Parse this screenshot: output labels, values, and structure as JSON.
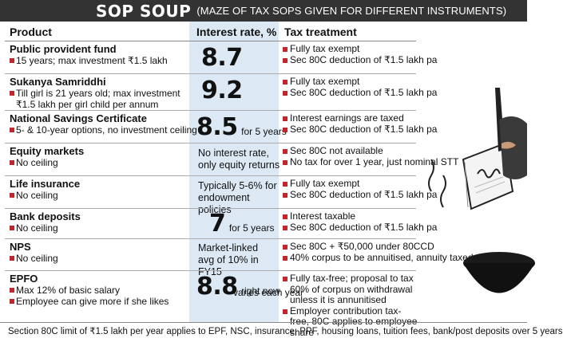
{
  "banner": {
    "title": "SOP SOUP",
    "subtitle": "(MAZE OF TAX SOPS GIVEN FOR DIFFERENT INSTRUMENTS)"
  },
  "headers": {
    "product": "Product",
    "rate": "Interest rate, %",
    "tax": "Tax treatment"
  },
  "rows": [
    {
      "name": "Public provident fund",
      "details": [
        "15 years; max investment ₹1.5 lakh"
      ],
      "rate_big": "8.7",
      "rate_note": "",
      "rate_text": [],
      "tax": [
        "Fully tax exempt",
        "Sec 80C deduction of ₹1.5 lakh pa"
      ]
    },
    {
      "name": "Sukanya Samriddhi",
      "details": [
        "Till girl is 21 years old; max investment ₹1.5 lakh per girl child per annum"
      ],
      "rate_big": "9.2",
      "rate_note": "",
      "rate_text": [],
      "tax": [
        "Fully tax exempt",
        "Sec 80C deduction of ₹1.5 lakh pa"
      ]
    },
    {
      "name": "National Savings Certificate",
      "details": [
        "5- & 10-year options, no investment ceiling"
      ],
      "rate_big": "8.5",
      "rate_note": "for 5 years",
      "rate_text": [],
      "tax": [
        "Interest earnings are taxed",
        "Sec 80C deduction of ₹1.5 lakh pa"
      ]
    },
    {
      "name": "Equity markets",
      "details": [
        "No ceiling"
      ],
      "rate_big": "",
      "rate_note": "",
      "rate_text": [
        "No interest rate,",
        "only equity returns"
      ],
      "tax": [
        "Sec 80C not available",
        "No tax for over 1 year, just nominal STT"
      ]
    },
    {
      "name": "Life insurance",
      "details": [
        "No ceiling"
      ],
      "rate_big": "",
      "rate_note": "",
      "rate_text": [
        "Typically 5-6% for",
        "endowment policies"
      ],
      "tax": [
        "Fully tax exempt",
        "Sec 80C deduction of ₹1.5 lakh pa"
      ]
    },
    {
      "name": "Bank deposits",
      "details": [
        "No ceiling"
      ],
      "rate_big": "7",
      "rate_note": "for 5 years",
      "rate_text": [],
      "tax": [
        "Interest taxable",
        "Sec 80C deduction of ₹1.5 lakh pa"
      ]
    },
    {
      "name": "NPS",
      "details": [
        "No ceiling"
      ],
      "rate_big": "",
      "rate_note": "",
      "rate_text": [
        "Market-linked",
        "avg of 10% in FY15"
      ],
      "tax": [
        "Sec 80C + ₹50,000 under 80CCD",
        "40% corpus to be annuitised, annuity taxed"
      ]
    },
    {
      "name": "EPFO",
      "details": [
        "Max 12% of basic salary",
        "Employee can give more if she likes"
      ],
      "rate_big": "8.8",
      "rate_note": "right now",
      "rate_note2": "varies each year",
      "rate_text": [],
      "tax": [
        "Fully tax-free; proposal to tax 60% of corpus on withdrawal unless it is annunitised",
        "Employer contribution tax-free, 80C applies to employee share"
      ]
    }
  ],
  "footer": "Section 80C limit of ₹1.5 lakh per year applies to EPF, NSC, insurance, PPF, housing loans, tuition fees, bank/post deposits over 5 years",
  "colors": {
    "banner": "#333333",
    "rate_column": "#dce8f4",
    "bullet": "#c0262c"
  }
}
